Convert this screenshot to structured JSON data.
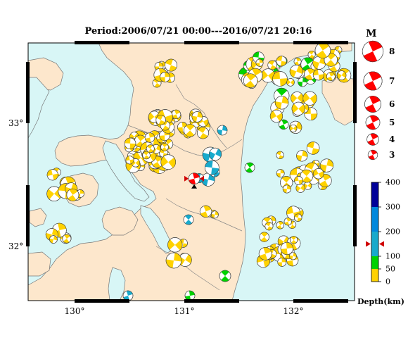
{
  "title": "Period:2006/07/21 00:00---2016/07/21 20:16",
  "lon_ticks": [
    "130°",
    "131°",
    "132°"
  ],
  "lat_ticks": [
    "33°",
    "32°"
  ],
  "colors": {
    "sea": "#d8f6f6",
    "land": "#fde7cc",
    "depth_0_50": "#ffd200",
    "depth_50_100": "#00d200",
    "depth_100_200": "#18aacc",
    "depth_200_300": "#0088dd",
    "depth_300_400": "#000099",
    "magnitude_symbol": "#ff0000",
    "marker": "#d00000"
  },
  "magnitude_legend": {
    "header": "M",
    "items": [
      {
        "label": "8",
        "m": 8
      },
      {
        "label": "7",
        "m": 7
      },
      {
        "label": "6",
        "m": 6
      },
      {
        "label": "5",
        "m": 5
      },
      {
        "label": "4",
        "m": 4
      },
      {
        "label": "3",
        "m": 3
      }
    ]
  },
  "depth_legend": {
    "title": "Depth(km)",
    "labels": [
      "400",
      "300",
      "200",
      "100",
      "50",
      "0"
    ],
    "marker_depth_km": 150
  },
  "highlight_event": {
    "lon": 131.09,
    "lat": 32.55,
    "m": 6
  }
}
